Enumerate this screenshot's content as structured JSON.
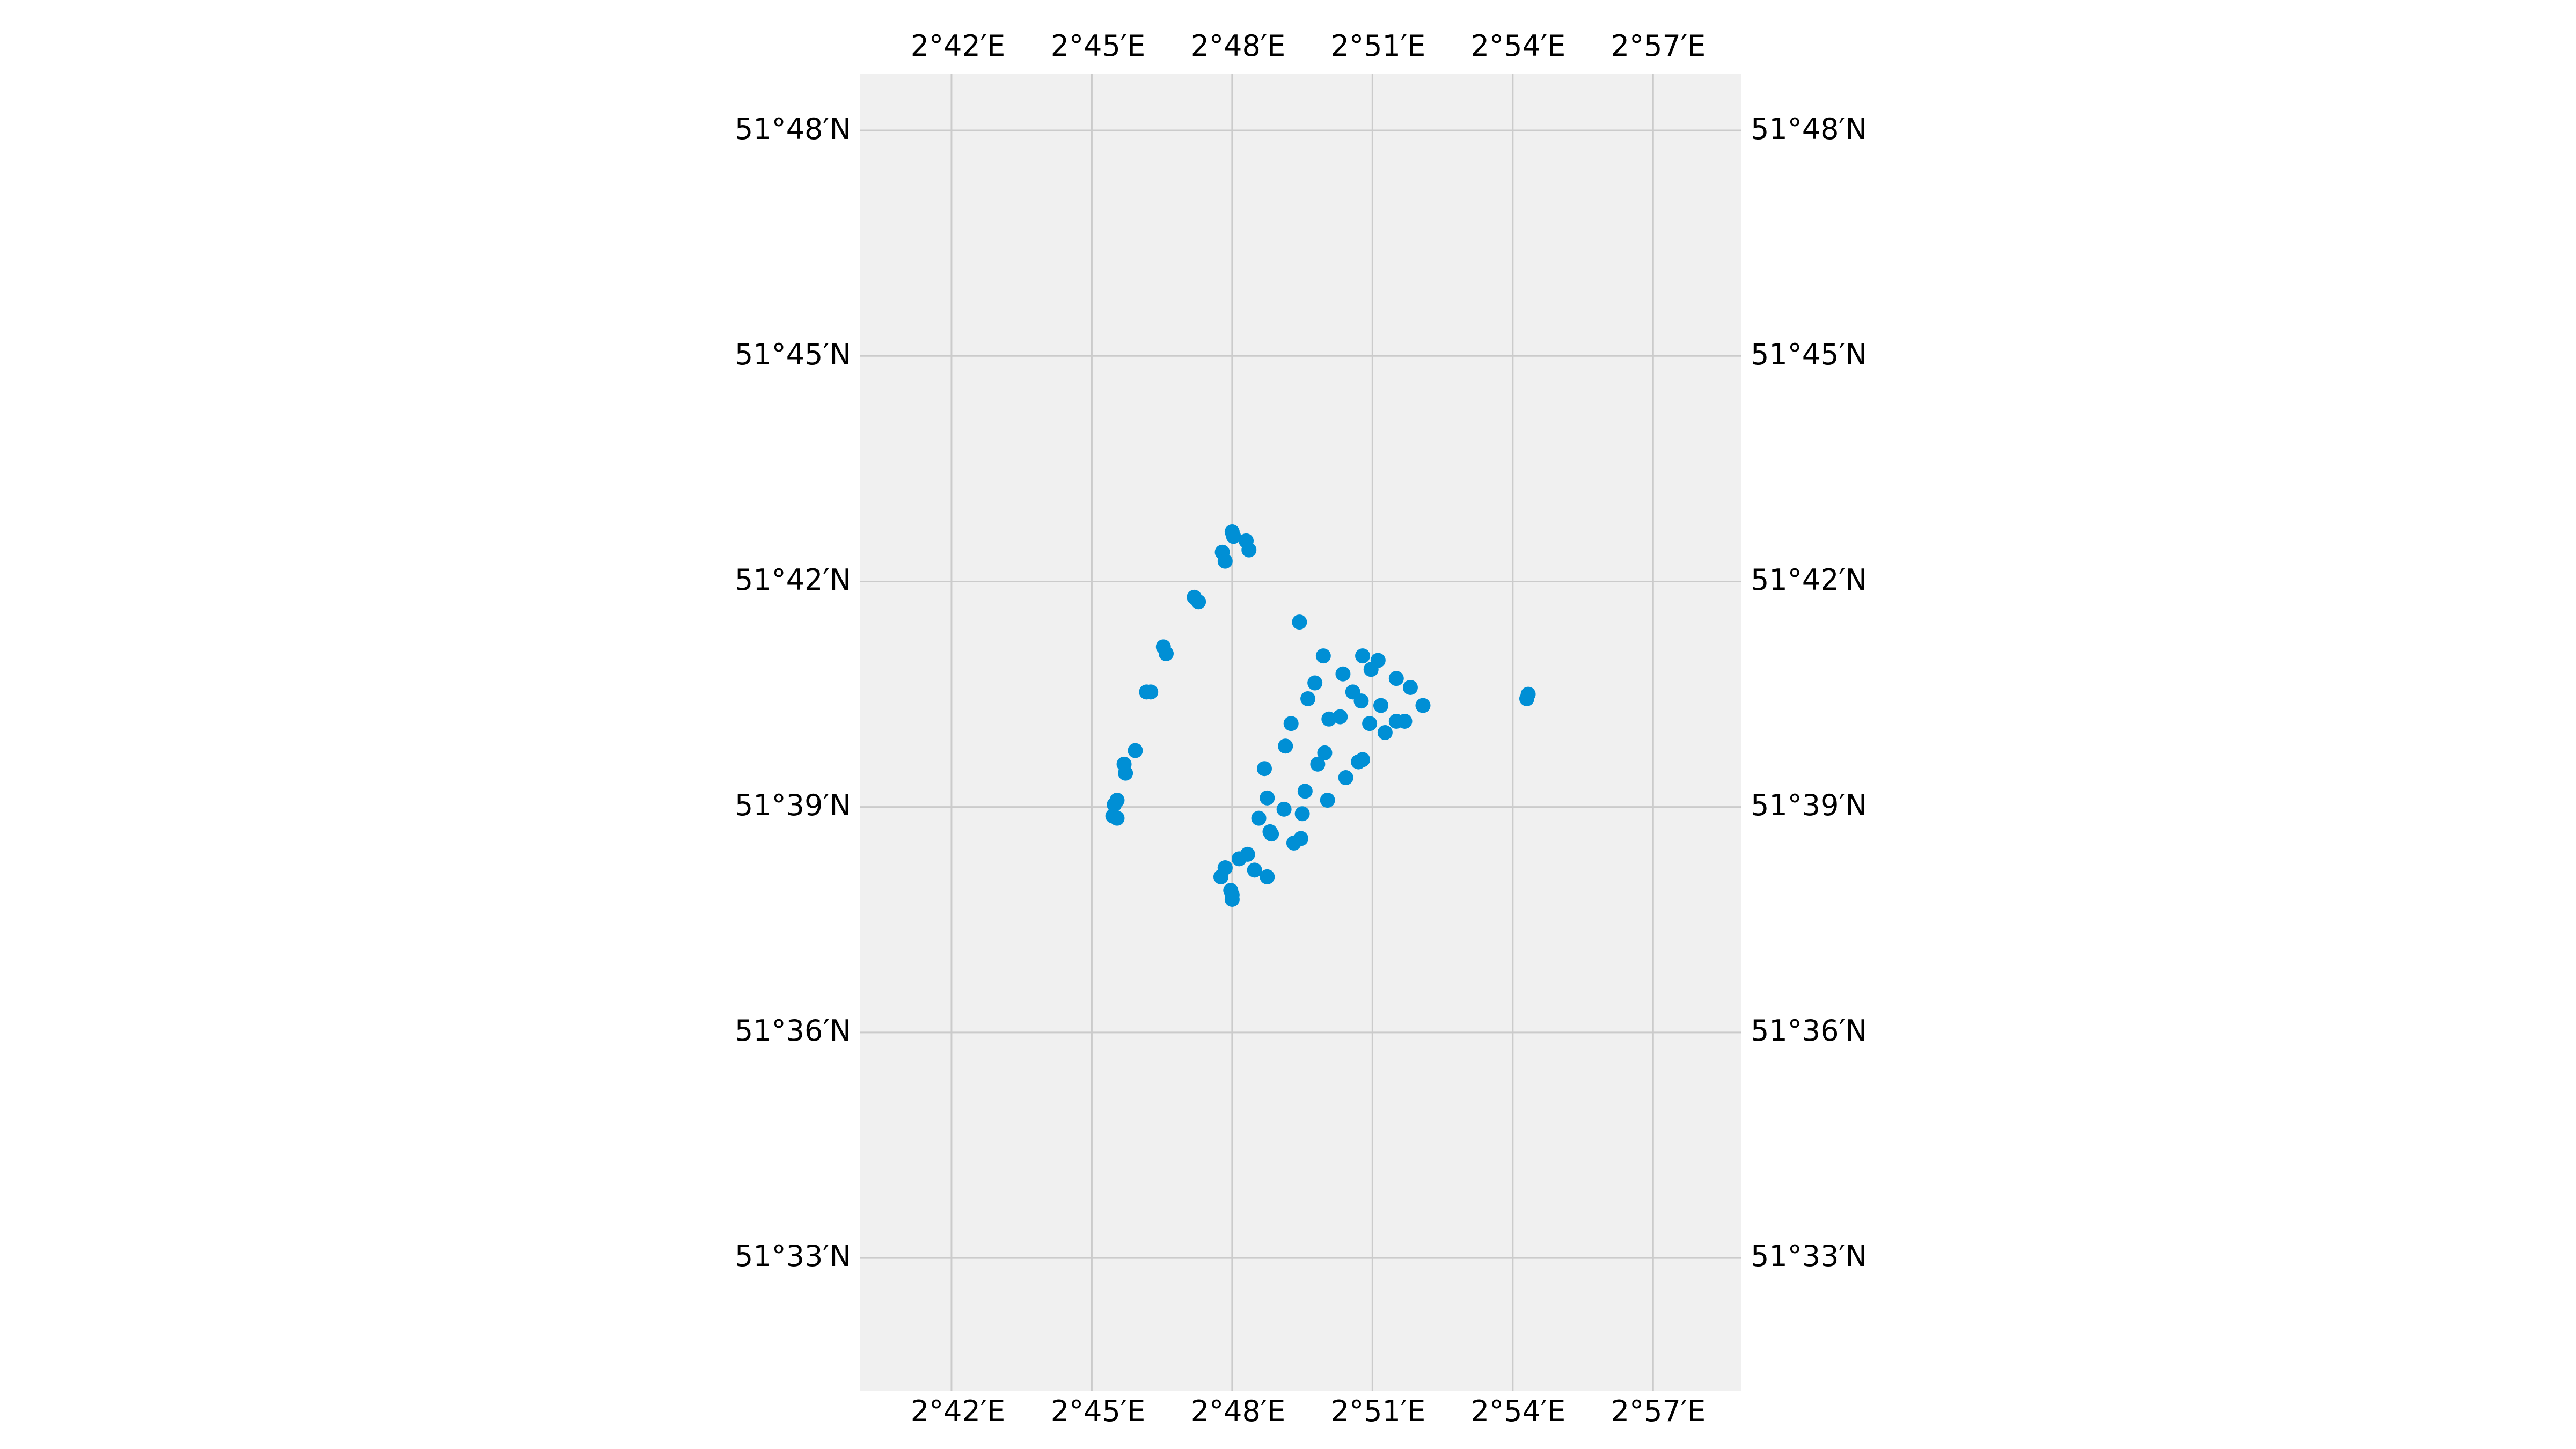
{
  "map": {
    "lon_ticks": [
      "2°42′E",
      "2°45′E",
      "2°48′E",
      "2°51′E",
      "2°54′E",
      "2°57′E"
    ],
    "lon_values": [
      2.7,
      2.75,
      2.8,
      2.85,
      2.9,
      2.95
    ],
    "lat_ticks": [
      "51°48′N",
      "51°45′N",
      "51°42′N",
      "51°39′N",
      "51°36′N",
      "51°33′N"
    ],
    "lat_values": [
      51.8,
      51.75,
      51.7,
      51.65,
      51.6,
      51.55
    ],
    "lon_range": [
      2.6675,
      2.9815
    ],
    "lat_range": [
      51.5205,
      51.8125
    ],
    "colors": {
      "background": "#f0f0f0",
      "grid": "#cbcbcb",
      "marker": "#008fd5"
    }
  },
  "chart_data": {
    "type": "scatter",
    "x_unit": "longitude (deg E)",
    "y_unit": "latitude (deg N)",
    "xlim": [
      2.6675,
      2.9815
    ],
    "ylim": [
      51.5205,
      51.8125
    ],
    "grid": true,
    "series": [
      {
        "points": [
          [
            2.8,
            51.711
          ],
          [
            2.8005,
            51.71
          ],
          [
            2.805,
            51.709
          ],
          [
            2.806,
            51.707
          ],
          [
            2.7965,
            51.7065
          ],
          [
            2.7975,
            51.7045
          ],
          [
            2.7865,
            51.6965
          ],
          [
            2.788,
            51.6955
          ],
          [
            2.7755,
            51.6855
          ],
          [
            2.7765,
            51.684
          ],
          [
            2.7695,
            51.6755
          ],
          [
            2.771,
            51.6755
          ],
          [
            2.7655,
            51.6625
          ],
          [
            2.7615,
            51.6595
          ],
          [
            2.762,
            51.6575
          ],
          [
            2.759,
            51.6515
          ],
          [
            2.758,
            51.6505
          ],
          [
            2.7575,
            51.648
          ],
          [
            2.759,
            51.6475
          ],
          [
            2.824,
            51.691
          ],
          [
            2.8325,
            51.6835
          ],
          [
            2.8465,
            51.6835
          ],
          [
            2.852,
            51.6825
          ],
          [
            2.8495,
            51.6805
          ],
          [
            2.8395,
            51.6795
          ],
          [
            2.8585,
            51.6785
          ],
          [
            2.8295,
            51.6775
          ],
          [
            2.8635,
            51.6765
          ],
          [
            2.843,
            51.6755
          ],
          [
            2.9055,
            51.675
          ],
          [
            2.905,
            51.674
          ],
          [
            2.827,
            51.674
          ],
          [
            2.846,
            51.6735
          ],
          [
            2.853,
            51.6725
          ],
          [
            2.868,
            51.6725
          ],
          [
            2.8385,
            51.67
          ],
          [
            2.8345,
            51.6695
          ],
          [
            2.8585,
            51.669
          ],
          [
            2.8615,
            51.669
          ],
          [
            2.821,
            51.6685
          ],
          [
            2.849,
            51.6685
          ],
          [
            2.8545,
            51.6665
          ],
          [
            2.819,
            51.6635
          ],
          [
            2.833,
            51.662
          ],
          [
            2.8465,
            51.6605
          ],
          [
            2.845,
            51.66
          ],
          [
            2.8305,
            51.6595
          ],
          [
            2.8115,
            51.6585
          ],
          [
            2.8405,
            51.6565
          ],
          [
            2.826,
            51.6535
          ],
          [
            2.8125,
            51.652
          ],
          [
            2.834,
            51.6515
          ],
          [
            2.8185,
            51.6495
          ],
          [
            2.825,
            51.6485
          ],
          [
            2.8095,
            51.6475
          ],
          [
            2.8135,
            51.6445
          ],
          [
            2.814,
            51.644
          ],
          [
            2.8245,
            51.643
          ],
          [
            2.822,
            51.642
          ],
          [
            2.8055,
            51.6395
          ],
          [
            2.8025,
            51.6385
          ],
          [
            2.7975,
            51.6365
          ],
          [
            2.7975,
            51.6365
          ],
          [
            2.808,
            51.636
          ],
          [
            2.8125,
            51.6345
          ],
          [
            2.796,
            51.6345
          ],
          [
            2.7995,
            51.6315
          ],
          [
            2.8,
            51.6305
          ],
          [
            2.8,
            51.6295
          ]
        ]
      }
    ]
  }
}
